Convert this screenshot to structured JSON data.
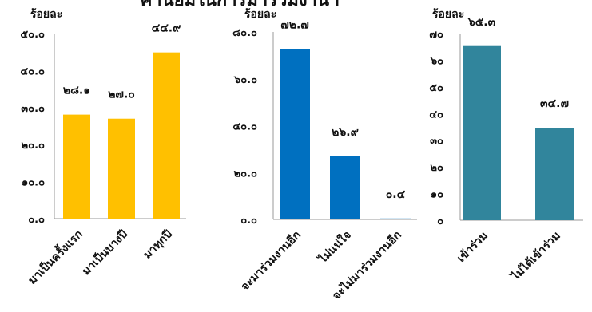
{
  "page_title": "ค่านิยมในการมาร่วมงานฯ",
  "chart_data": [
    {
      "type": "bar",
      "ylabel": "ร้อยละ",
      "ylim": [
        0,
        50
      ],
      "yticks": [
        "๐.๐",
        "๑๐.๐",
        "๒๐.๐",
        "๓๐.๐",
        "๔๐.๐",
        "๕๐.๐"
      ],
      "categories": [
        "มาเป็นครั้งแรก",
        "มาเป็นบางปี",
        "มาทุกปี"
      ],
      "values": [
        28.1,
        27.0,
        44.9
      ],
      "data_labels": [
        "๒๘.๑",
        "๒๗.๐",
        "๔๔.๙"
      ],
      "color": "#FFC000",
      "grid": false
    },
    {
      "type": "bar",
      "ylabel": "ร้อยละ",
      "ylim": [
        0,
        80
      ],
      "yticks": [
        "๐.๐",
        "๒๐.๐",
        "๔๐.๐",
        "๖๐.๐",
        "๘๐.๐"
      ],
      "categories": [
        "จะมาร่วมงานอีก",
        "ไม่แน่ใจ",
        "จะไม่มาร่วมงานอีก"
      ],
      "values": [
        72.7,
        26.9,
        0.4
      ],
      "data_labels": [
        "๗๒.๗",
        "๒๖.๙",
        "๐.๔"
      ],
      "color": "#0070C0",
      "grid": false
    },
    {
      "type": "bar",
      "ylabel": "ร้อยละ",
      "ylim": [
        0,
        70
      ],
      "yticks": [
        "๐",
        "๑๐",
        "๒๐",
        "๓๐",
        "๔๐",
        "๕๐",
        "๖๐",
        "๗๐"
      ],
      "categories": [
        "เข้าร่วม",
        "ไม่ได้เข้าร่วม"
      ],
      "values": [
        65.3,
        34.7
      ],
      "data_labels": [
        "๖๕.๓",
        "๓๔.๗"
      ],
      "color": "#31859C",
      "grid": false
    }
  ]
}
